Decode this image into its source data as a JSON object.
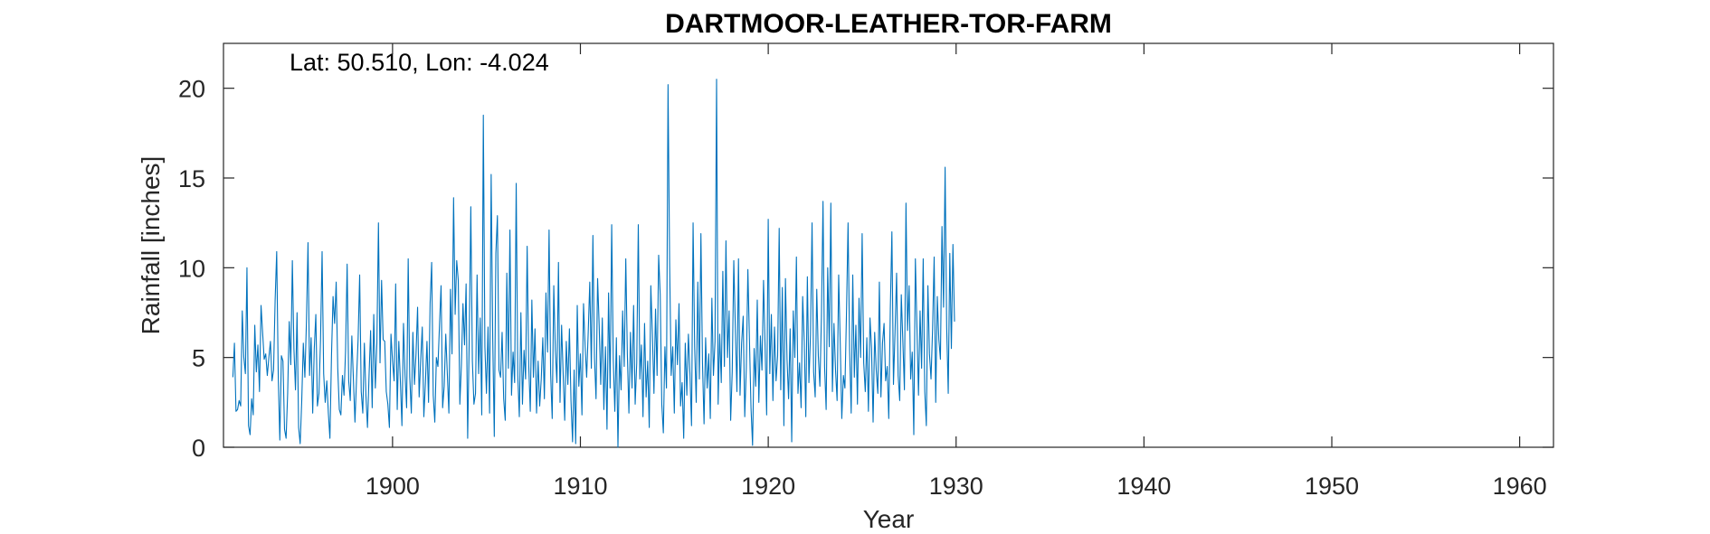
{
  "chart_data": {
    "type": "line",
    "title": "DARTMOOR-LEATHER-TOR-FARM",
    "annotation": "Lat: 50.510, Lon: -4.024",
    "xlabel": "Year",
    "ylabel": "Rainfall [inches]",
    "xlim": [
      1891,
      1961.8
    ],
    "ylim": [
      0,
      22.5
    ],
    "xticks": [
      1900,
      1910,
      1920,
      1930,
      1940,
      1950,
      1960
    ],
    "yticks": [
      0,
      5,
      10,
      15,
      20
    ],
    "grid": false,
    "line_color": "#0072BD",
    "series": [
      {
        "x_start": 1891.5,
        "x_step": 0.08333,
        "values": [
          3.9,
          5.8,
          2.0,
          2.1,
          2.6,
          2.3,
          7.6,
          5.0,
          4.1,
          10.0,
          1.2,
          0.7,
          2.7,
          1.8,
          6.8,
          4.2,
          5.7,
          3.1,
          7.9,
          6.4,
          4.9,
          5.2,
          4.0,
          5.0,
          5.9,
          3.7,
          4.3,
          8.2,
          10.9,
          3.9,
          0.4,
          5.1,
          4.8,
          1.0,
          0.5,
          3.0,
          7.0,
          4.6,
          10.4,
          5.5,
          3.2,
          7.5,
          1.1,
          0.2,
          2.6,
          5.8,
          3.9,
          7.0,
          11.4,
          4.0,
          6.1,
          1.9,
          5.5,
          7.4,
          2.3,
          3.0,
          6.0,
          10.9,
          4.1,
          2.5,
          3.7,
          1.9,
          0.5,
          5.1,
          8.4,
          6.9,
          9.2,
          4.4,
          2.1,
          1.8,
          4.0,
          2.9,
          5.4,
          10.2,
          3.7,
          2.6,
          6.2,
          3.8,
          1.4,
          3.8,
          6.0,
          9.6,
          3.1,
          1.9,
          5.8,
          2.9,
          1.1,
          4.0,
          6.5,
          2.2,
          7.4,
          3.3,
          5.8,
          12.5,
          4.7,
          9.3,
          6.0,
          5.9,
          3.1,
          2.4,
          1.1,
          6.3,
          4.8,
          3.7,
          9.1,
          2.1,
          5.9,
          3.7,
          1.2,
          6.9,
          4.0,
          2.2,
          10.5,
          3.9,
          1.9,
          6.4,
          3.5,
          5.2,
          7.8,
          2.8,
          4.9,
          6.7,
          1.7,
          3.6,
          5.9,
          2.5,
          8.0,
          10.3,
          2.9,
          1.4,
          5.0,
          4.5,
          6.8,
          9.0,
          2.2,
          3.4,
          6.3,
          4.1,
          1.9,
          8.8,
          5.2,
          13.9,
          7.4,
          10.4,
          9.3,
          2.4,
          4.6,
          8.0,
          5.7,
          9.1,
          0.5,
          6.1,
          13.4,
          4.8,
          2.4,
          3.0,
          9.6,
          4.1,
          7.2,
          1.8,
          18.5,
          5.6,
          3.0,
          6.7,
          1.9,
          15.2,
          6.1,
          0.6,
          10.8,
          12.9,
          4.3,
          3.9,
          6.4,
          2.7,
          1.5,
          9.7,
          4.4,
          12.1,
          2.9,
          5.3,
          3.6,
          14.7,
          4.0,
          1.7,
          7.5,
          2.4,
          5.4,
          3.8,
          11.2,
          4.6,
          2.0,
          8.2,
          3.9,
          6.6,
          1.9,
          4.8,
          2.3,
          3.8,
          6.1,
          2.7,
          8.6,
          5.3,
          12.1,
          4.1,
          1.6,
          9.0,
          5.4,
          3.6,
          10.3,
          2.5,
          6.8,
          4.1,
          1.5,
          5.9,
          3.5,
          6.6,
          2.6,
          0.3,
          4.3,
          0.2,
          7.9,
          3.4,
          5.2,
          1.8,
          8.0,
          5.7,
          3.9,
          6.4,
          9.2,
          4.4,
          11.8,
          5.0,
          2.7,
          9.4,
          6.8,
          3.5,
          7.2,
          2.1,
          5.6,
          1.0,
          8.6,
          3.3,
          12.4,
          4.9,
          2.0,
          6.1,
          0.0,
          5.1,
          3.2,
          7.6,
          4.5,
          10.5,
          5.2,
          1.9,
          6.4,
          3.3,
          7.9,
          2.4,
          4.7,
          12.4,
          3.8,
          5.7,
          1.7,
          6.9,
          2.8,
          4.8,
          1.1,
          9.0,
          6.3,
          3.0,
          7.7,
          4.0,
          10.7,
          8.5,
          2.4,
          0.8,
          5.6,
          3.3,
          20.2,
          10.3,
          4.0,
          5.6,
          1.9,
          7.1,
          4.6,
          8.0,
          2.3,
          3.6,
          0.5,
          5.8,
          2.9,
          6.3,
          4.1,
          1.2,
          12.5,
          5.6,
          2.5,
          9.2,
          3.8,
          11.9,
          4.7,
          1.3,
          6.1,
          3.3,
          5.2,
          1.6,
          8.3,
          4.0,
          5.9,
          20.5,
          2.4,
          6.3,
          3.6,
          9.8,
          4.5,
          11.5,
          5.0,
          7.6,
          1.5,
          4.2,
          10.4,
          6.6,
          3.1,
          10.5,
          2.9,
          5.8,
          7.3,
          1.7,
          4.4,
          9.9,
          6.0,
          2.2,
          0.1,
          5.5,
          3.4,
          8.2,
          2.5,
          6.2,
          4.3,
          9.3,
          5.6,
          1.8,
          12.7,
          4.1,
          7.4,
          2.6,
          6.7,
          3.7,
          5.1,
          12.2,
          3.2,
          8.9,
          1.2,
          9.4,
          4.9,
          2.7,
          6.6,
          0.3,
          7.6,
          5.0,
          10.6,
          3.0,
          4.7,
          2.2,
          8.4,
          5.9,
          1.7,
          9.5,
          3.6,
          6.3,
          12.5,
          4.2,
          2.8,
          8.8,
          5.1,
          3.4,
          7.3,
          13.7,
          4.5,
          2.1,
          10.0,
          5.6,
          13.6,
          3.1,
          6.9,
          4.3,
          2.6,
          9.6,
          5.8,
          1.6,
          4.0,
          3.3,
          7.5,
          12.5,
          5.4,
          1.9,
          9.6,
          3.9,
          6.8,
          2.4,
          8.3,
          5.0,
          11.9,
          4.7,
          3.1,
          6.1,
          2.0,
          7.2,
          5.5,
          1.4,
          6.4,
          4.3,
          3.0,
          9.2,
          2.8,
          5.8,
          6.9,
          3.7,
          4.5,
          1.6,
          7.7,
          12.0,
          3.5,
          6.4,
          9.7,
          4.0,
          2.6,
          8.5,
          5.9,
          3.2,
          13.6,
          6.5,
          9.0,
          3.8,
          5.3,
          0.7,
          10.5,
          6.7,
          2.9,
          7.6,
          4.4,
          10.5,
          3.1,
          1.2,
          9.0,
          5.2,
          3.8,
          6.6,
          10.6,
          2.5,
          8.4,
          6.0,
          4.9,
          12.3,
          7.8,
          15.6,
          6.7,
          3.0,
          10.8,
          5.5,
          11.3,
          7.0
        ]
      }
    ]
  }
}
